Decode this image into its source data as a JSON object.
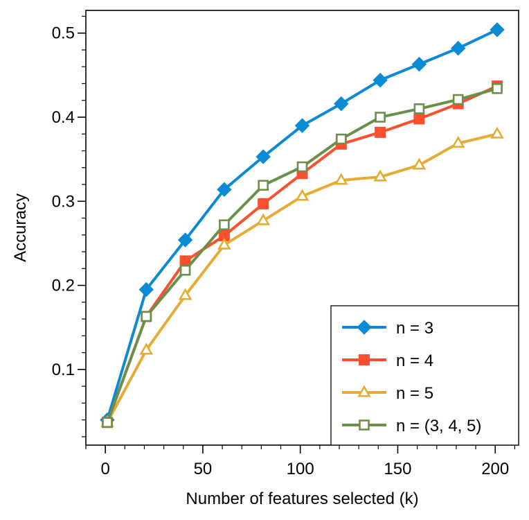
{
  "chart_data": {
    "type": "line",
    "title": "",
    "xlabel": "Number of features selected (k)",
    "ylabel": "Accuracy",
    "xlim": [
      -10,
      212
    ],
    "ylim": [
      0.01,
      0.527
    ],
    "xticks": [
      0,
      50,
      100,
      150,
      200
    ],
    "xtick_labels": [
      "0",
      "50",
      "100",
      "150",
      "200"
    ],
    "yticks": [
      0.1,
      0.2,
      0.3,
      0.4,
      0.5
    ],
    "ytick_labels": [
      "0.1",
      "0.2",
      "0.3",
      "0.4",
      "0.5"
    ],
    "x": [
      1,
      21,
      41,
      61,
      81,
      101,
      121,
      141,
      161,
      181,
      201
    ],
    "grid": false,
    "legend_position": "lower right",
    "series": [
      {
        "name": "n = 3",
        "color": "#0a8ad3",
        "marker": "diamond-filled",
        "values": [
          0.04,
          0.195,
          0.254,
          0.314,
          0.353,
          0.39,
          0.416,
          0.444,
          0.463,
          0.482,
          0.504
        ]
      },
      {
        "name": "n = 4",
        "color": "#fb4f2f",
        "marker": "square-filled",
        "values": [
          0.037,
          0.163,
          0.229,
          0.259,
          0.297,
          0.333,
          0.368,
          0.382,
          0.398,
          0.416,
          0.437
        ]
      },
      {
        "name": "n = 5",
        "color": "#e4ac34",
        "marker": "triangle-open",
        "values": [
          0.037,
          0.123,
          0.188,
          0.248,
          0.277,
          0.306,
          0.325,
          0.329,
          0.343,
          0.369,
          0.38
        ]
      },
      {
        "name": "n = (3, 4, 5)",
        "color": "#6a8f4a",
        "marker": "square-open",
        "values": [
          0.037,
          0.163,
          0.218,
          0.272,
          0.319,
          0.341,
          0.374,
          0.4,
          0.41,
          0.421,
          0.434
        ]
      }
    ]
  }
}
